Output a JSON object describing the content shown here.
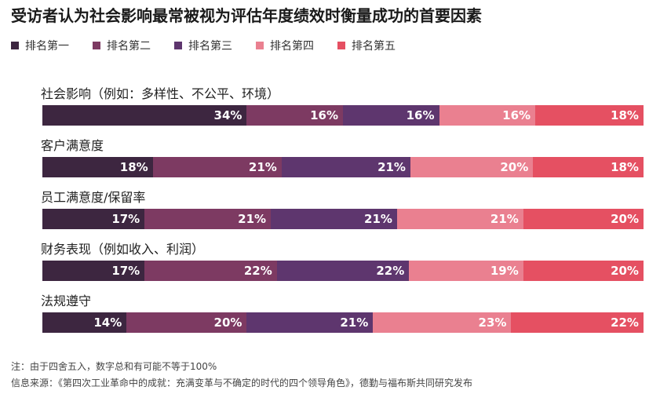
{
  "chart_data": {
    "type": "bar",
    "orientation": "horizontal-stacked",
    "title": "受访者认为社会影响最常被视为评估年度绩效时衡量成功的首要因素",
    "legend_position": "top-left",
    "series": [
      {
        "name": "排名第一",
        "color": "#3d2640",
        "values": [
          34,
          18,
          17,
          17,
          14
        ]
      },
      {
        "name": "排名第二",
        "color": "#7d3a62",
        "values": [
          16,
          21,
          21,
          22,
          20
        ]
      },
      {
        "name": "排名第三",
        "color": "#5e366e",
        "values": [
          16,
          21,
          21,
          22,
          21
        ]
      },
      {
        "name": "排名第四",
        "color": "#ea8090",
        "values": [
          16,
          20,
          21,
          19,
          23
        ]
      },
      {
        "name": "排名第五",
        "color": "#e55062",
        "values": [
          18,
          18,
          20,
          20,
          22
        ]
      }
    ],
    "categories": [
      "社会影响（例如：多样性、不公平、环境）",
      "客户满意度",
      "员工满意度/保留率",
      "财务表现（例如收入、利润）",
      "法规遵守"
    ],
    "value_suffix": "%"
  },
  "footnotes": {
    "note": "注：由于四舍五入，数字总和有可能不等于100%",
    "source": "信息来源：《第四次工业革命中的成就：充满变革与不确定的时代的四个领导角色》，德勤与福布斯共同研究发布"
  }
}
